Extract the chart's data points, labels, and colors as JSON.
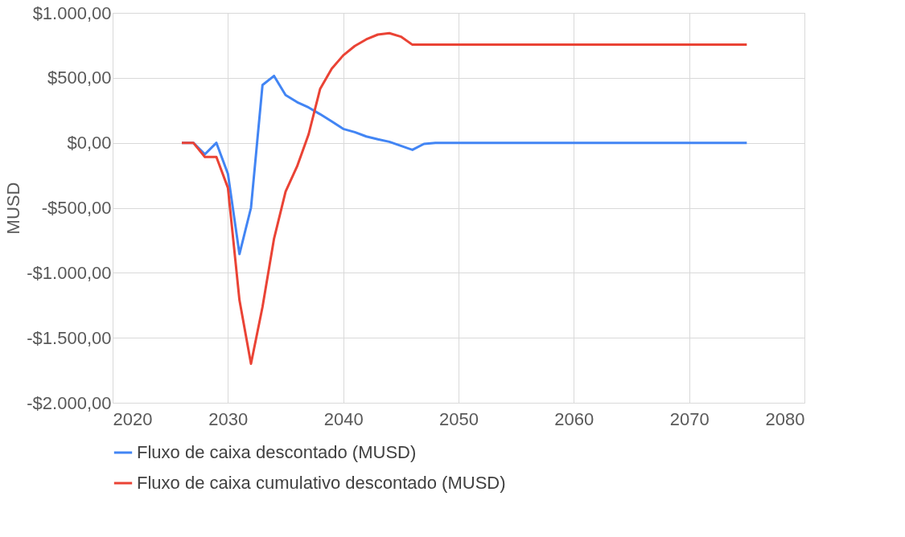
{
  "chart_data": {
    "type": "line",
    "ylabel": "MUSD",
    "xlim": [
      2020,
      2080
    ],
    "xticks": [
      2020,
      2030,
      2040,
      2050,
      2060,
      2070,
      2080
    ],
    "ylim": [
      -2000,
      1000
    ],
    "yticks": [
      {
        "value": -2000,
        "label": "-$2.000,00"
      },
      {
        "value": -1500,
        "label": "-$1.500,00"
      },
      {
        "value": -1000,
        "label": "-$1.000,00"
      },
      {
        "value": -500,
        "label": "-$500,00"
      },
      {
        "value": 0,
        "label": "$0,00"
      },
      {
        "value": 500,
        "label": "$500,00"
      },
      {
        "value": 1000,
        "label": "$1.000,00"
      }
    ],
    "grid": true,
    "legend": "bottom",
    "marker": "none",
    "line_style": "solid",
    "x": [
      2026,
      2027,
      2028,
      2029,
      2030,
      2031,
      2032,
      2033,
      2034,
      2035,
      2036,
      2037,
      2038,
      2039,
      2040,
      2041,
      2042,
      2043,
      2044,
      2045,
      2046,
      2047,
      2048,
      2049,
      2050,
      2051,
      2052,
      2053,
      2054,
      2055,
      2056,
      2057,
      2058,
      2059,
      2060,
      2061,
      2062,
      2063,
      2064,
      2065,
      2066,
      2067,
      2068,
      2069,
      2070,
      2071,
      2072,
      2073,
      2074,
      2075
    ],
    "series": [
      {
        "name": "Fluxo de caixa descontado (MUSD)",
        "color": "#4285f4",
        "values": [
          0,
          0,
          -88,
          0,
          -239,
          -856,
          -500,
          445,
          515,
          368,
          313,
          272,
          220,
          165,
          107,
          82,
          49,
          27,
          8,
          -23,
          -54,
          -8,
          0,
          0,
          0,
          0,
          0,
          0,
          0,
          0,
          0,
          0,
          0,
          0,
          0,
          0,
          0,
          0,
          0,
          0,
          0,
          0,
          0,
          0,
          0,
          0,
          0,
          0,
          0,
          0
        ]
      },
      {
        "name": "Fluxo de caixa cumulativo descontado (MUSD)",
        "color": "#ea4335",
        "values": [
          0,
          0,
          -109,
          -109,
          -346,
          -1210,
          -1700,
          -1262,
          -737,
          -376,
          -181,
          66,
          416,
          570,
          673,
          745,
          796,
          833,
          844,
          817,
          755,
          755,
          755,
          755,
          755,
          755,
          755,
          755,
          755,
          755,
          755,
          755,
          755,
          755,
          755,
          755,
          755,
          755,
          755,
          755,
          755,
          755,
          755,
          755,
          755,
          755,
          755,
          755,
          755,
          755
        ]
      }
    ]
  }
}
